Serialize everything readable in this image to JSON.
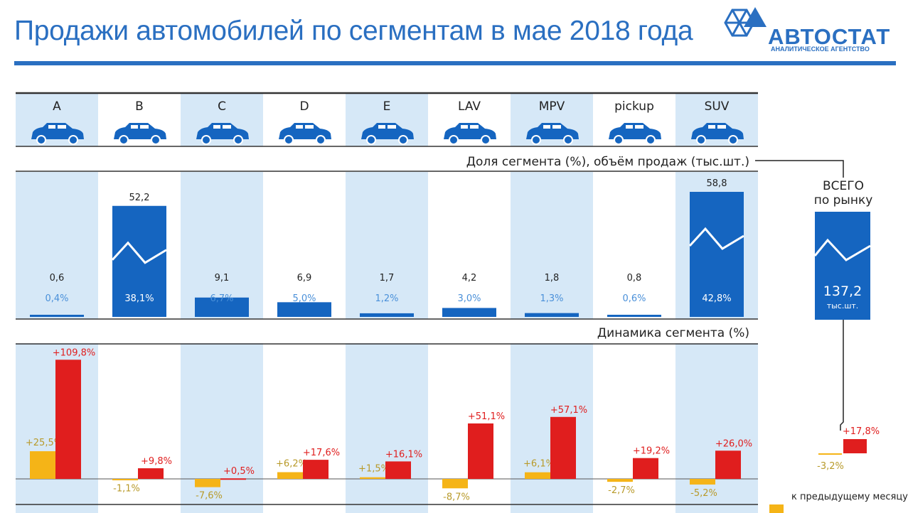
{
  "header": {
    "title": "Продажи автомобилей по сегментам в мае 2018 года",
    "logo_name": "АВТОСТАТ",
    "logo_sub": "АНАЛИТИЧЕСКОЕ АГЕНТСТВО"
  },
  "colors": {
    "title": "#2a6fc1",
    "band": "#d6e8f7",
    "bar": "#1565c0",
    "share_light": "#4a90d9",
    "red": "#e01e1e",
    "orange": "#f5b417",
    "gold_text": "#b89a2a"
  },
  "labels": {
    "share_section": "Доля сегмента (%), объём продаж (тыс.шт.)",
    "dynamics_section": "Динамика сегмента (%)",
    "total_line1": "ВСЕГО",
    "total_line2": "по рынку",
    "total_value": "137,2",
    "total_unit": "тыс.шт.",
    "total_prev_month": "-3,2%",
    "total_prev_year": "+17,8%",
    "legend_prev_month": "к предыдущему месяцу"
  },
  "chart_data": [
    {
      "type": "bar",
      "title": "Доля сегмента (%), объём продаж (тыс.шт.)",
      "categories": [
        "A",
        "B",
        "C",
        "D",
        "E",
        "LAV",
        "MPV",
        "pickup",
        "SUV"
      ],
      "series": [
        {
          "values": [
            0.6,
            52.2,
            9.1,
            6.9,
            1.7,
            4.2,
            1.8,
            0.8,
            58.8
          ]
        },
        {
          "values": [
            0.4,
            38.1,
            6.7,
            5.0,
            1.2,
            3.0,
            1.3,
            0.6,
            42.8
          ]
        }
      ],
      "value_labels": [
        "0,6",
        "52,2",
        "9,1",
        "6,9",
        "1,7",
        "4,2",
        "1,8",
        "0,8",
        "58,8"
      ],
      "share_labels": [
        "0,4%",
        "38,1%",
        "6,7%",
        "5,0%",
        "1,2%",
        "3,0%",
        "1,3%",
        "0,6%",
        "42,8%"
      ],
      "ylim": [
        0,
        58.8
      ]
    },
    {
      "type": "bar",
      "title": "Динамика сегмента (%)",
      "categories": [
        "A",
        "B",
        "C",
        "D",
        "E",
        "LAV",
        "MPV",
        "pickup",
        "SUV"
      ],
      "series": [
        {
          "name": "к предыдущему месяцу",
          "values": [
            25.5,
            -1.1,
            -7.6,
            6.2,
            1.5,
            -8.7,
            6.1,
            -2.7,
            -5.2
          ]
        },
        {
          "values": [
            109.8,
            9.8,
            0.5,
            17.6,
            16.1,
            51.1,
            57.1,
            19.2,
            26.0
          ]
        }
      ],
      "prev_month_labels": [
        "+25,5%",
        "-1,1%",
        "-7,6%",
        "+6,2%",
        "+1,5%",
        "-8,7%",
        "+6,1%",
        "-2,7%",
        "-5,2%"
      ],
      "prev_year_labels": [
        "+109,8%",
        "+9,8%",
        "+0,5%",
        "+17,6%",
        "+16,1%",
        "+51,1%",
        "+57,1%",
        "+19,2%",
        "+26,0%"
      ],
      "ylim": [
        -10,
        110
      ]
    }
  ]
}
